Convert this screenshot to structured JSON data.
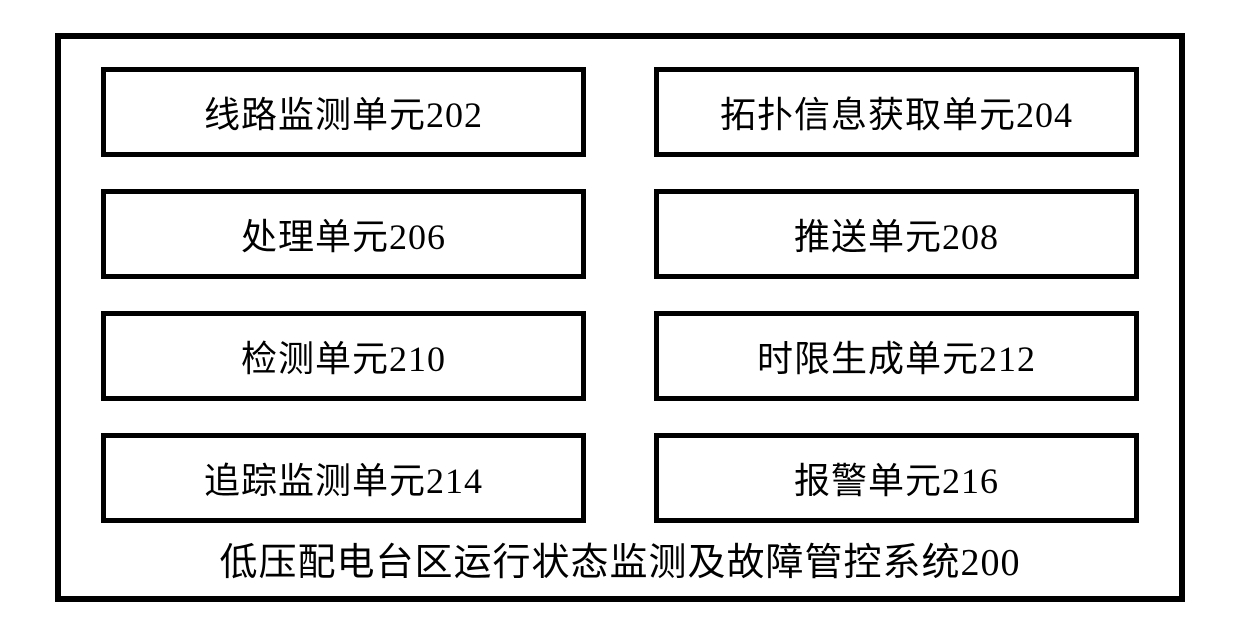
{
  "diagram": {
    "type": "block-diagram",
    "background_color": "#ffffff",
    "outer_border_color": "#000000",
    "outer_border_width": 6,
    "box_border_color": "#000000",
    "box_border_width": 5,
    "box_background_color": "#ffffff",
    "text_color": "#000000",
    "font_family": "KaiTi",
    "box_font_size": 36,
    "title_font_size": 38,
    "grid_columns": 2,
    "grid_rows": 4,
    "column_gap": 68,
    "row_gap": 32,
    "units": [
      {
        "label": "线路监测单元202"
      },
      {
        "label": "拓扑信息获取单元204"
      },
      {
        "label": "处理单元206"
      },
      {
        "label": "推送单元208"
      },
      {
        "label": "检测单元210"
      },
      {
        "label": "时限生成单元212"
      },
      {
        "label": "追踪监测单元214"
      },
      {
        "label": "报警单元216"
      }
    ],
    "system_title": "低压配电台区运行状态监测及故障管控系统200"
  }
}
